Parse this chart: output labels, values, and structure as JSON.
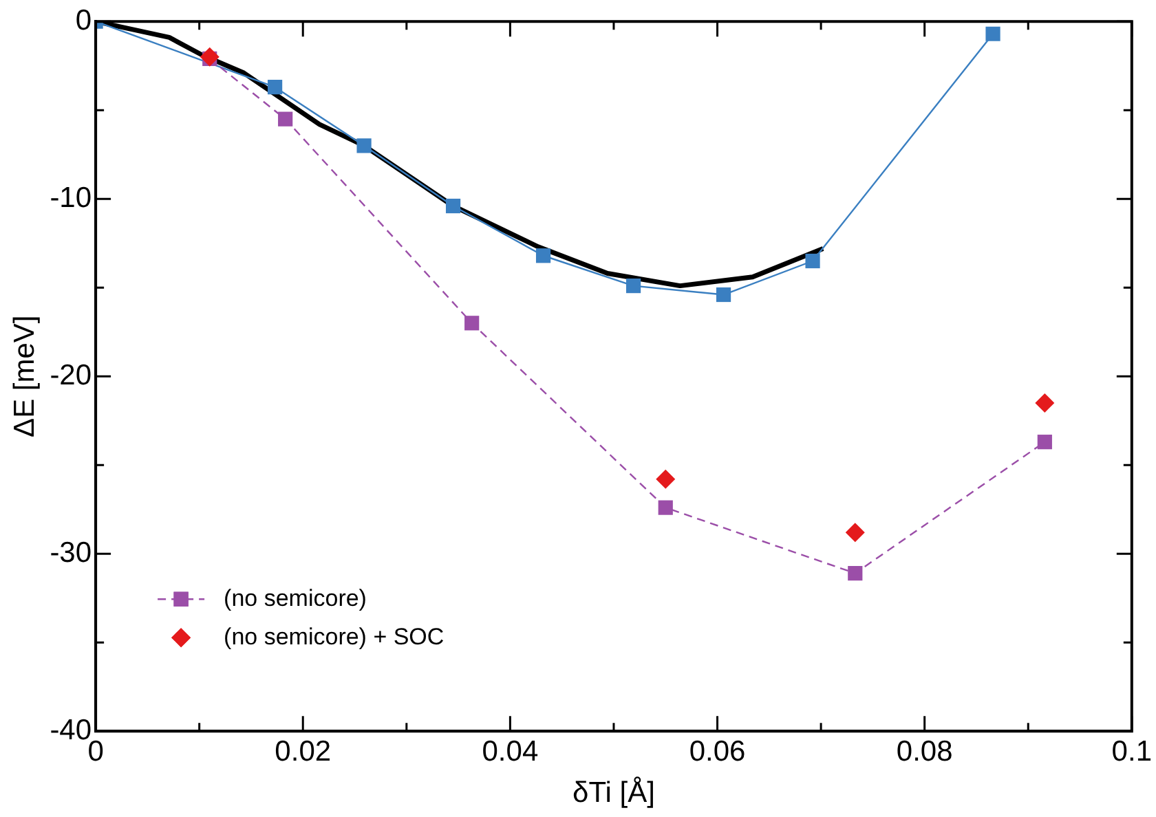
{
  "chart_data": {
    "type": "line",
    "xlabel": "δTi [Å]",
    "ylabel": "ΔE [meV]",
    "xlim": [
      0,
      0.1
    ],
    "ylim": [
      -40,
      0
    ],
    "xticks": [
      0,
      {
        "value": 0.01,
        "label": null
      },
      0.02,
      {
        "value": 0.03,
        "label": null
      },
      0.04,
      {
        "value": 0.05,
        "label": null
      },
      0.06,
      {
        "value": 0.07,
        "label": null
      },
      0.08,
      {
        "value": 0.09,
        "label": null
      },
      0.1
    ],
    "yticks": [
      -40,
      {
        "value": -35,
        "label": null
      },
      -30,
      {
        "value": -25,
        "label": null
      },
      -20,
      {
        "value": -15,
        "label": null
      },
      -10,
      {
        "value": -5,
        "label": null
      },
      0
    ],
    "grid": false,
    "legend": "bottom left",
    "series": [
      {
        "type": "line",
        "color": "#000000",
        "marker": "none",
        "line_style": "solid",
        "x": [
          0,
          0.0071,
          0.0103,
          0.0143,
          0.0216,
          0.0259,
          0.0345,
          0.0427,
          0.0494,
          0.0564,
          0.0634,
          0.0702
        ],
        "values": [
          0,
          -0.9,
          -1.9,
          -2.9,
          -5.8,
          -7.0,
          -10.4,
          -12.7,
          -14.2,
          -14.9,
          -14.4,
          -12.8
        ]
      },
      {
        "type": "line",
        "color": "#3a7fc1",
        "marker": "square",
        "line_style": "solid",
        "x": [
          0,
          0.011,
          0.0173,
          0.0259,
          0.0345,
          0.0432,
          0.0519,
          0.0606,
          0.0692,
          0.0866
        ],
        "values": [
          0,
          null,
          -3.7,
          -7.0,
          -10.4,
          -13.2,
          -14.9,
          -15.4,
          -13.5,
          -0.7
        ]
      },
      {
        "type": "line",
        "name": "(no semicore)",
        "color": "#9b4ea8",
        "marker": "square",
        "line_style": "dashed",
        "x": [
          0.011,
          0.0183,
          0.0363,
          0.055,
          0.0733,
          0.0916
        ],
        "values": [
          -2.1,
          -5.5,
          -17.0,
          -27.4,
          -31.1,
          -23.7
        ]
      },
      {
        "type": "scatter",
        "name": "(no semicore) + SOC",
        "color": "#e41a1c",
        "marker": "diamond",
        "x": [
          0.011,
          0.055,
          0.0733,
          0.0916
        ],
        "values": [
          -2.0,
          -25.8,
          -28.8,
          -21.5
        ]
      }
    ]
  }
}
